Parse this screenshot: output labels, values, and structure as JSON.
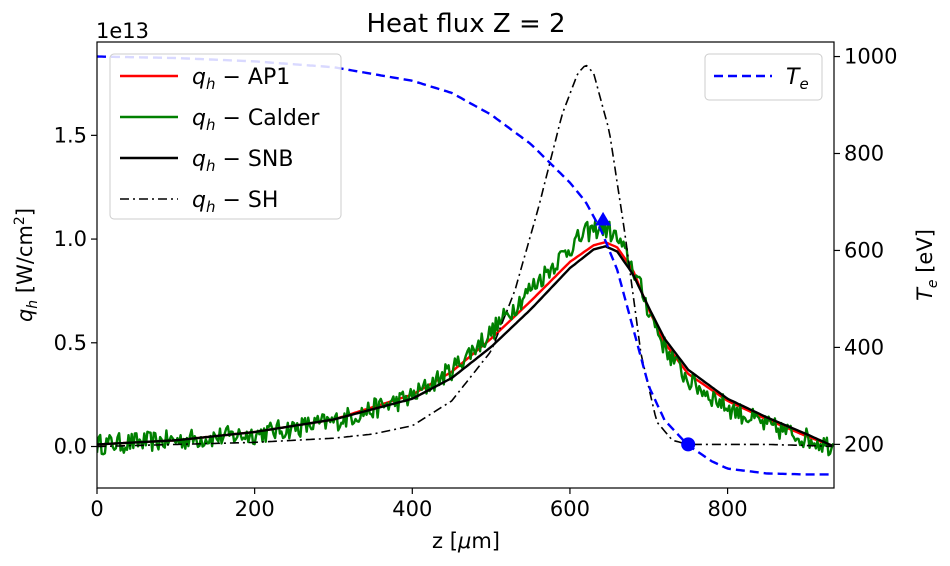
{
  "chart_data": {
    "type": "line",
    "title": "Heat flux Z = 2",
    "xlabel": "z [μm]",
    "ylabel_left": "q_h [W/cm²]",
    "ylabel_right": "T_e [eV]",
    "offset_text": "1e13",
    "xlim": [
      0,
      935
    ],
    "ylim_left": [
      -0.2,
      1.95
    ],
    "ylim_right": [
      110,
      1030
    ],
    "x_ticks": [
      0,
      200,
      400,
      600,
      800
    ],
    "x_tick_labels": [
      "0",
      "200",
      "400",
      "600",
      "800"
    ],
    "y_left_ticks": [
      0.0,
      0.5,
      1.0,
      1.5
    ],
    "y_left_tick_labels": [
      "0.0",
      "0.5",
      "1.0",
      "1.5"
    ],
    "y_right_ticks": [
      200,
      400,
      600,
      800,
      1000
    ],
    "y_right_tick_labels": [
      "200",
      "400",
      "600",
      "800",
      "1000"
    ],
    "legend_left_position": "top-left",
    "legend_right_position": "top-right",
    "grid": false,
    "series": [
      {
        "name": "q_h − AP1",
        "legend_main": "q",
        "legend_sub": "h",
        "legend_rest": " − AP1",
        "axis": "left",
        "color": "#ff0000",
        "style": "solid",
        "x": [
          0,
          100,
          200,
          300,
          400,
          450,
          500,
          550,
          600,
          630,
          645,
          660,
          680,
          700,
          720,
          750,
          800,
          850,
          900,
          935
        ],
        "y": [
          0.01,
          0.03,
          0.07,
          0.13,
          0.25,
          0.36,
          0.52,
          0.7,
          0.89,
          0.97,
          0.985,
          0.96,
          0.85,
          0.66,
          0.5,
          0.35,
          0.22,
          0.13,
          0.05,
          0.0
        ]
      },
      {
        "name": "q_h − Calder",
        "legend_main": "q",
        "legend_sub": "h",
        "legend_rest": " − Calder",
        "axis": "left",
        "color": "#008000",
        "style": "solid",
        "x": [
          0,
          100,
          200,
          300,
          400,
          450,
          500,
          550,
          600,
          620,
          640,
          650,
          660,
          680,
          700,
          720,
          750,
          800,
          850,
          900,
          935
        ],
        "y": [
          0.01,
          0.03,
          0.06,
          0.12,
          0.24,
          0.37,
          0.55,
          0.76,
          0.96,
          1.03,
          1.06,
          1.04,
          1.0,
          0.86,
          0.66,
          0.48,
          0.32,
          0.19,
          0.1,
          0.04,
          0.0
        ],
        "noise_amplitude": 0.05
      },
      {
        "name": "q_h − SNB",
        "legend_main": "q",
        "legend_sub": "h",
        "legend_rest": " − SNB",
        "axis": "left",
        "color": "#000000",
        "style": "solid",
        "x": [
          0,
          100,
          200,
          300,
          400,
          450,
          500,
          550,
          600,
          630,
          645,
          660,
          680,
          700,
          720,
          750,
          800,
          850,
          900,
          935
        ],
        "y": [
          0.01,
          0.03,
          0.07,
          0.13,
          0.23,
          0.33,
          0.48,
          0.66,
          0.86,
          0.95,
          0.965,
          0.94,
          0.83,
          0.67,
          0.52,
          0.37,
          0.23,
          0.14,
          0.06,
          0.0
        ]
      },
      {
        "name": "q_h − SH",
        "legend_main": "q",
        "legend_sub": "h",
        "legend_rest": " − SH",
        "axis": "left",
        "color": "#000000",
        "style": "dashdot",
        "x": [
          0,
          100,
          200,
          300,
          350,
          400,
          450,
          500,
          530,
          560,
          590,
          610,
          620,
          630,
          650,
          670,
          690,
          710,
          730,
          750,
          800,
          850,
          900,
          935
        ],
        "y": [
          0.0,
          0.01,
          0.02,
          0.04,
          0.06,
          0.1,
          0.22,
          0.46,
          0.75,
          1.15,
          1.6,
          1.8,
          1.84,
          1.8,
          1.52,
          1.02,
          0.45,
          0.12,
          0.03,
          0.01,
          0.01,
          0.01,
          0.005,
          0.0
        ]
      },
      {
        "name": "T_e",
        "legend_main": "T",
        "legend_sub": "e",
        "legend_rest": "",
        "axis": "right",
        "color": "#0000ff",
        "style": "dashed",
        "x": [
          0,
          100,
          200,
          300,
          400,
          450,
          500,
          550,
          600,
          620,
          640,
          660,
          680,
          700,
          720,
          750,
          780,
          800,
          850,
          900,
          935
        ],
        "y": [
          1000,
          997,
          990,
          978,
          950,
          925,
          880,
          820,
          740,
          700,
          640,
          560,
          440,
          320,
          250,
          198,
          165,
          150,
          140,
          138,
          138
        ]
      }
    ],
    "markers": [
      {
        "name": "triangle-marker",
        "shape": "triangle",
        "x": 642,
        "y": 663,
        "axis": "right",
        "color": "#0000ff"
      },
      {
        "name": "circle-marker",
        "shape": "circle",
        "x": 750,
        "y": 200,
        "axis": "right",
        "color": "#0000ff"
      }
    ]
  }
}
